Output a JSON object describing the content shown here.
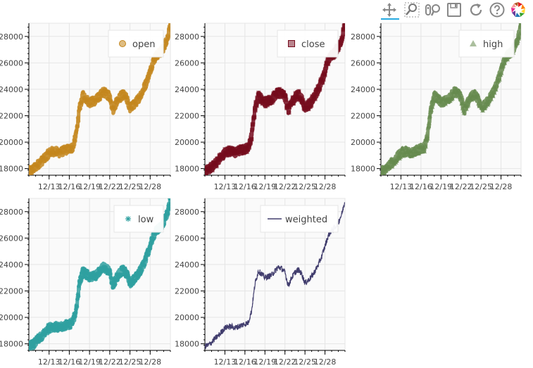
{
  "toolbar": {
    "tools": [
      {
        "name": "pan-tool",
        "icon": "pan-icon",
        "active": true
      },
      {
        "name": "box-zoom-tool",
        "icon": "box-zoom-icon",
        "active": false
      },
      {
        "name": "wheel-zoom-tool",
        "icon": "wheel-zoom-icon",
        "active": false
      },
      {
        "name": "save-tool",
        "icon": "save-icon",
        "active": false
      },
      {
        "name": "reset-tool",
        "icon": "reset-icon",
        "active": false
      },
      {
        "name": "help-tool",
        "icon": "help-icon",
        "active": false
      },
      {
        "name": "bokeh-logo",
        "icon": "bokeh-logo-icon",
        "active": false
      }
    ]
  },
  "chart_data": [
    {
      "type": "scatter",
      "series": [
        {
          "name": "open",
          "marker": "circle",
          "color": "#c4861c"
        }
      ],
      "x_ticks": [
        "12/13",
        "12/16",
        "12/19",
        "12/22",
        "12/25",
        "12/28"
      ],
      "y_ticks": [
        18000,
        20000,
        22000,
        24000,
        26000,
        28000
      ],
      "ylim": [
        17500,
        29000
      ],
      "xlim": [
        "12/10",
        "12/31"
      ],
      "grid": true,
      "legend": "top-right"
    },
    {
      "type": "scatter",
      "series": [
        {
          "name": "close",
          "marker": "square",
          "color": "#750b1d"
        }
      ],
      "x_ticks": [
        "12/13",
        "12/16",
        "12/19",
        "12/22",
        "12/25",
        "12/28"
      ],
      "y_ticks": [
        18000,
        20000,
        22000,
        24000,
        26000,
        28000
      ],
      "ylim": [
        17500,
        29000
      ],
      "xlim": [
        "12/10",
        "12/31"
      ],
      "grid": true,
      "legend": "top-right"
    },
    {
      "type": "scatter",
      "series": [
        {
          "name": "high",
          "marker": "triangle",
          "color": "#668a4e"
        }
      ],
      "x_ticks": [
        "12/13",
        "12/16",
        "12/19",
        "12/22",
        "12/25",
        "12/28"
      ],
      "y_ticks": [
        18000,
        20000,
        22000,
        24000,
        26000,
        28000
      ],
      "ylim": [
        17500,
        29000
      ],
      "xlim": [
        "12/10",
        "12/31"
      ],
      "grid": true,
      "legend": "top-right"
    },
    {
      "type": "scatter",
      "series": [
        {
          "name": "low",
          "marker": "asterisk",
          "color": "#2fa0a0"
        }
      ],
      "x_ticks": [
        "12/13",
        "12/16",
        "12/19",
        "12/22",
        "12/25",
        "12/28"
      ],
      "y_ticks": [
        18000,
        20000,
        22000,
        24000,
        26000,
        28000
      ],
      "ylim": [
        17500,
        29000
      ],
      "xlim": [
        "12/10",
        "12/31"
      ],
      "grid": true,
      "legend": "top-right"
    },
    {
      "type": "line",
      "series": [
        {
          "name": "weighted",
          "marker": "line",
          "color": "#423e6e"
        }
      ],
      "x_ticks": [
        "12/13",
        "12/16",
        "12/19",
        "12/22",
        "12/25",
        "12/28"
      ],
      "y_ticks": [
        18000,
        20000,
        22000,
        24000,
        26000,
        28000
      ],
      "ylim": [
        17500,
        29000
      ],
      "xlim": [
        "12/10",
        "12/31"
      ],
      "grid": true,
      "legend": "top-right"
    }
  ],
  "price_path": {
    "x": [
      "12/10",
      "12/10 12:00",
      "12/11",
      "12/11 12:00",
      "12/12",
      "12/12 12:00",
      "12/13",
      "12/13 12:00",
      "12/14",
      "12/14 12:00",
      "12/15",
      "12/15 12:00",
      "12/16",
      "12/16 12:00",
      "12/17",
      "12/17 12:00",
      "12/18",
      "12/18 12:00",
      "12/19",
      "12/19 12:00",
      "12/20",
      "12/20 12:00",
      "12/21",
      "12/21 12:00",
      "12/22",
      "12/22 12:00",
      "12/23",
      "12/23 12:00",
      "12/24",
      "12/24 12:00",
      "12/25",
      "12/25 12:00",
      "12/26",
      "12/26 12:00",
      "12/27",
      "12/27 12:00",
      "12/28",
      "12/28 12:00",
      "12/29",
      "12/29 12:00",
      "12/30",
      "12/30 12:00",
      "12/31"
    ],
    "y": [
      17800,
      17900,
      18100,
      18400,
      18600,
      18900,
      19200,
      19300,
      19300,
      19200,
      19300,
      19400,
      19500,
      19600,
      20500,
      22500,
      23500,
      23300,
      23000,
      23100,
      23200,
      23500,
      23800,
      23700,
      23400,
      22400,
      23000,
      23400,
      23600,
      23300,
      22600,
      22800,
      23100,
      23500,
      24000,
      24600,
      25400,
      26200,
      26600,
      26800,
      27200,
      27800,
      28800
    ]
  }
}
